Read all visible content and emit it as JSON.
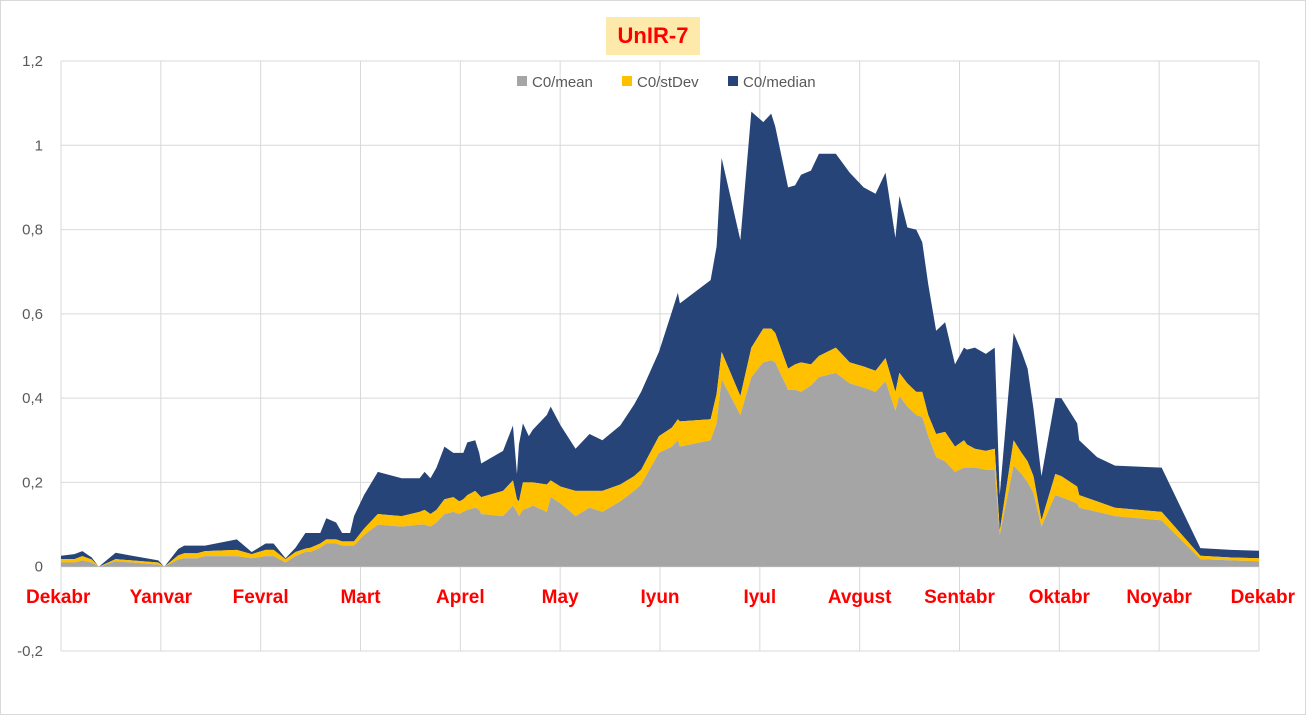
{
  "colors": {
    "mean": "#a5a5a5",
    "stdev": "#ffc000",
    "median": "#264478",
    "month_label": "#ff0000",
    "gridline": "#d9d9d9",
    "title_bg": "#fde9a9"
  },
  "chart_data": {
    "type": "area",
    "stacked": true,
    "title": "UnIR-7",
    "xlabel": "",
    "ylabel": "",
    "ylim": [
      -0.2,
      1.2
    ],
    "yticks": [
      -0.2,
      0,
      0.2,
      0.4,
      0.6,
      0.8,
      1,
      1.2
    ],
    "ytick_labels": [
      "-0,2",
      "0",
      "0,2",
      "0,4",
      "0,6",
      "0,8",
      "1",
      "1,2"
    ],
    "xlim": [
      0,
      12
    ],
    "month_labels": [
      "Dekabr",
      "Yanvar",
      "Fevral",
      "Mart",
      "Aprel",
      "May",
      "Iyun",
      "Iyul",
      "Avgust",
      "Sentabr",
      "Oktabr",
      "Noyabr",
      "Dekabr"
    ],
    "grid": "vertical and horizontal",
    "legend_position": "top-center",
    "series": [
      {
        "name": "C0/mean",
        "color": "#a5a5a5"
      },
      {
        "name": "C0/stDev",
        "color": "#ffc000"
      },
      {
        "name": "C0/median",
        "color": "#264478"
      }
    ],
    "x": [
      0.0,
      0.134,
      0.214,
      0.308,
      0.378,
      0.547,
      0.975,
      1.035,
      1.174,
      1.234,
      1.363,
      1.443,
      1.761,
      1.91,
      2.05,
      2.129,
      2.249,
      2.349,
      2.448,
      2.497,
      2.597,
      2.657,
      2.756,
      2.816,
      2.896,
      2.935,
      3.035,
      3.174,
      3.413,
      3.592,
      3.642,
      3.701,
      3.761,
      3.841,
      3.93,
      3.99,
      4.03,
      4.07,
      4.149,
      4.189,
      4.209,
      4.428,
      4.527,
      4.567,
      4.587,
      4.627,
      4.686,
      4.726,
      4.866,
      4.905,
      5.005,
      5.154,
      5.294,
      5.423,
      5.602,
      5.741,
      5.811,
      5.99,
      6.119,
      6.179,
      6.199,
      6.507,
      6.567,
      6.617,
      6.805,
      6.915,
      7.034,
      7.114,
      7.154,
      7.283,
      7.353,
      7.413,
      7.512,
      7.592,
      7.761,
      7.9,
      8.04,
      8.159,
      8.259,
      8.358,
      8.398,
      8.478,
      8.567,
      8.627,
      8.687,
      8.766,
      8.856,
      8.955,
      9.045,
      9.075,
      9.154,
      9.264,
      9.353,
      9.403,
      9.542,
      9.622,
      9.682,
      9.741,
      9.821,
      9.96,
      10.02,
      10.179,
      10.199,
      10.378,
      10.557,
      11.025,
      11.413,
      11.722,
      12.0
    ],
    "mean": [
      0.01,
      0.01,
      0.015,
      0.01,
      0.0,
      0.013,
      0.005,
      0.0,
      0.017,
      0.02,
      0.02,
      0.025,
      0.025,
      0.02,
      0.025,
      0.025,
      0.01,
      0.025,
      0.035,
      0.035,
      0.045,
      0.055,
      0.055,
      0.05,
      0.05,
      0.05,
      0.075,
      0.1,
      0.095,
      0.1,
      0.1,
      0.095,
      0.105,
      0.125,
      0.13,
      0.125,
      0.13,
      0.135,
      0.14,
      0.135,
      0.125,
      0.12,
      0.145,
      0.13,
      0.12,
      0.135,
      0.14,
      0.145,
      0.13,
      0.165,
      0.15,
      0.12,
      0.14,
      0.13,
      0.155,
      0.18,
      0.195,
      0.27,
      0.285,
      0.3,
      0.285,
      0.3,
      0.34,
      0.445,
      0.36,
      0.45,
      0.485,
      0.49,
      0.485,
      0.42,
      0.42,
      0.415,
      0.43,
      0.45,
      0.46,
      0.435,
      0.425,
      0.415,
      0.44,
      0.37,
      0.405,
      0.38,
      0.36,
      0.355,
      0.31,
      0.26,
      0.25,
      0.225,
      0.235,
      0.235,
      0.235,
      0.23,
      0.23,
      0.075,
      0.24,
      0.22,
      0.2,
      0.175,
      0.095,
      0.17,
      0.165,
      0.15,
      0.14,
      0.13,
      0.12,
      0.11,
      0.018,
      0.015,
      0.013
    ],
    "stdev": [
      0.008,
      0.008,
      0.01,
      0.007,
      0.0,
      0.005,
      0.005,
      0.0,
      0.01,
      0.012,
      0.012,
      0.012,
      0.015,
      0.01,
      0.015,
      0.015,
      0.008,
      0.01,
      0.008,
      0.01,
      0.01,
      0.01,
      0.01,
      0.01,
      0.01,
      0.01,
      0.015,
      0.025,
      0.025,
      0.03,
      0.035,
      0.03,
      0.03,
      0.035,
      0.035,
      0.03,
      0.03,
      0.035,
      0.04,
      0.035,
      0.04,
      0.06,
      0.06,
      0.03,
      0.035,
      0.065,
      0.06,
      0.055,
      0.065,
      0.04,
      0.04,
      0.06,
      0.04,
      0.05,
      0.04,
      0.035,
      0.035,
      0.04,
      0.045,
      0.05,
      0.06,
      0.05,
      0.07,
      0.065,
      0.045,
      0.07,
      0.08,
      0.075,
      0.07,
      0.05,
      0.06,
      0.07,
      0.05,
      0.05,
      0.06,
      0.05,
      0.05,
      0.05,
      0.055,
      0.045,
      0.055,
      0.055,
      0.055,
      0.06,
      0.05,
      0.055,
      0.07,
      0.06,
      0.065,
      0.055,
      0.045,
      0.045,
      0.05,
      0.01,
      0.06,
      0.05,
      0.05,
      0.04,
      0.015,
      0.05,
      0.05,
      0.04,
      0.03,
      0.025,
      0.02,
      0.02,
      0.008,
      0.007,
      0.007
    ],
    "median": [
      0.008,
      0.012,
      0.012,
      0.005,
      0.0,
      0.015,
      0.005,
      0.0,
      0.015,
      0.018,
      0.018,
      0.013,
      0.025,
      0.005,
      0.015,
      0.015,
      0.002,
      0.01,
      0.037,
      0.035,
      0.025,
      0.05,
      0.04,
      0.02,
      0.02,
      0.06,
      0.08,
      0.1,
      0.09,
      0.08,
      0.09,
      0.085,
      0.1,
      0.125,
      0.105,
      0.115,
      0.11,
      0.125,
      0.12,
      0.1,
      0.08,
      0.095,
      0.13,
      0.06,
      0.135,
      0.14,
      0.11,
      0.125,
      0.165,
      0.175,
      0.145,
      0.1,
      0.135,
      0.12,
      0.14,
      0.17,
      0.185,
      0.2,
      0.275,
      0.3,
      0.28,
      0.33,
      0.35,
      0.46,
      0.37,
      0.56,
      0.49,
      0.51,
      0.49,
      0.43,
      0.425,
      0.445,
      0.46,
      0.48,
      0.46,
      0.45,
      0.425,
      0.42,
      0.44,
      0.365,
      0.42,
      0.37,
      0.385,
      0.355,
      0.31,
      0.245,
      0.26,
      0.195,
      0.22,
      0.225,
      0.24,
      0.23,
      0.24,
      0.085,
      0.255,
      0.24,
      0.22,
      0.16,
      0.105,
      0.18,
      0.185,
      0.15,
      0.13,
      0.105,
      0.1,
      0.105,
      0.018,
      0.018,
      0.018
    ]
  }
}
